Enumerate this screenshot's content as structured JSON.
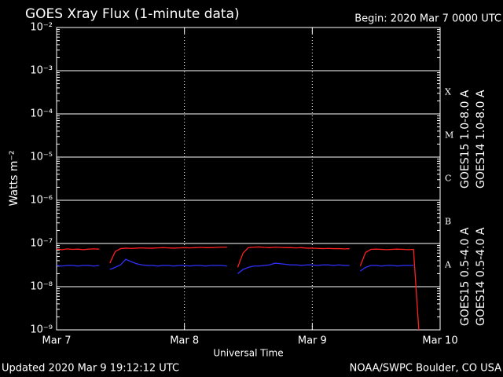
{
  "chart_data": {
    "type": "line",
    "title": "GOES Xray Flux (1-minute data)",
    "subtitle": "Begin:  2020 Mar 7 0000 UTC",
    "x_label": "Universal Time",
    "y_label": "Watts m⁻²",
    "footer_left": "Updated 2020 Mar  9 19:12:12 UTC",
    "footer_right": "NOAA/SWPC Boulder, CO USA",
    "flare_classes": [
      "A",
      "B",
      "C",
      "M",
      "X"
    ],
    "log_scale": true,
    "grid": true,
    "ylim": [
      1e-09,
      0.01
    ],
    "yticks": [
      {
        "value": 1e-09,
        "label": "10⁻⁹"
      },
      {
        "value": 1e-08,
        "label": "10⁻⁸"
      },
      {
        "value": 1e-07,
        "label": "10⁻⁷"
      },
      {
        "value": 1e-06,
        "label": "10⁻⁶"
      },
      {
        "value": 1e-05,
        "label": "10⁻⁵"
      },
      {
        "value": 0.0001,
        "label": "10⁻⁴"
      },
      {
        "value": 0.001,
        "label": "10⁻³"
      },
      {
        "value": 0.01,
        "label": "10⁻²"
      }
    ],
    "xlim": [
      "2020-03-07 00:00",
      "2020-03-10 00:00"
    ],
    "xticks": [
      {
        "value": "2020-03-07 00:00",
        "label": "Mar 7"
      },
      {
        "value": "2020-03-08 00:00",
        "label": "Mar 8"
      },
      {
        "value": "2020-03-09 00:00",
        "label": "Mar 9"
      },
      {
        "value": "2020-03-10 00:00",
        "label": "Mar 10"
      }
    ],
    "x": [
      "2020-03-07 00:00",
      "2020-03-07 01:00",
      "2020-03-07 02:00",
      "2020-03-07 03:00",
      "2020-03-07 04:00",
      "2020-03-07 05:00",
      "2020-03-07 06:00",
      "2020-03-07 07:00",
      "2020-03-07 08:00",
      "2020-03-07 09:00",
      "2020-03-07 10:00",
      "2020-03-07 11:00",
      "2020-03-07 12:00",
      "2020-03-07 13:00",
      "2020-03-07 14:00",
      "2020-03-07 15:00",
      "2020-03-07 16:00",
      "2020-03-07 17:00",
      "2020-03-07 18:00",
      "2020-03-07 19:00",
      "2020-03-07 20:00",
      "2020-03-07 21:00",
      "2020-03-07 22:00",
      "2020-03-07 23:00",
      "2020-03-08 00:00",
      "2020-03-08 01:00",
      "2020-03-08 02:00",
      "2020-03-08 03:00",
      "2020-03-08 04:00",
      "2020-03-08 05:00",
      "2020-03-08 06:00",
      "2020-03-08 07:00",
      "2020-03-08 08:00",
      "2020-03-08 09:00",
      "2020-03-08 10:00",
      "2020-03-08 11:00",
      "2020-03-08 12:00",
      "2020-03-08 13:00",
      "2020-03-08 14:00",
      "2020-03-08 15:00",
      "2020-03-08 16:00",
      "2020-03-08 17:00",
      "2020-03-08 18:00",
      "2020-03-08 19:00",
      "2020-03-08 20:00",
      "2020-03-08 21:00",
      "2020-03-08 22:00",
      "2020-03-08 23:00",
      "2020-03-09 00:00",
      "2020-03-09 01:00",
      "2020-03-09 02:00",
      "2020-03-09 03:00",
      "2020-03-09 04:00",
      "2020-03-09 05:00",
      "2020-03-09 06:00",
      "2020-03-09 07:00",
      "2020-03-09 08:00",
      "2020-03-09 09:00",
      "2020-03-09 10:00",
      "2020-03-09 11:00",
      "2020-03-09 12:00",
      "2020-03-09 13:00",
      "2020-03-09 14:00",
      "2020-03-09 15:00",
      "2020-03-09 16:00",
      "2020-03-09 17:00",
      "2020-03-09 18:00",
      "2020-03-09 19:00",
      "2020-03-09 20:00"
    ],
    "series": [
      {
        "name": "GOES15 1.0-8.0 A",
        "color": "#ff2020",
        "values": [
          7.4e-08,
          7.2e-08,
          7.5e-08,
          7.3e-08,
          7.4e-08,
          7.2e-08,
          7.4e-08,
          7.5e-08,
          7.4e-08,
          null,
          3.5e-08,
          6.5e-08,
          7.6e-08,
          7.8e-08,
          7.7e-08,
          7.8e-08,
          7.9e-08,
          7.8e-08,
          7.8e-08,
          7.9e-08,
          8e-08,
          7.9e-08,
          7.8e-08,
          7.9e-08,
          8e-08,
          7.9e-08,
          8e-08,
          8.1e-08,
          8e-08,
          8e-08,
          8.1e-08,
          8.2e-08,
          8.2e-08,
          null,
          2.8e-08,
          6e-08,
          8e-08,
          8.2e-08,
          8.3e-08,
          8.1e-08,
          8e-08,
          8.2e-08,
          8.1e-08,
          8e-08,
          8e-08,
          7.9e-08,
          8e-08,
          7.8e-08,
          7.8e-08,
          7.7e-08,
          7.6e-08,
          7.7e-08,
          7.6e-08,
          7.6e-08,
          7.5e-08,
          7.6e-08,
          null,
          3e-08,
          6.2e-08,
          7.3e-08,
          7.4e-08,
          7.3e-08,
          7.2e-08,
          7.3e-08,
          7.4e-08,
          7.3e-08,
          7.2e-08,
          7.3e-08,
          1e-09
        ]
      },
      {
        "name": "GOES14 1.0-8.0 A",
        "color": "#ffa020",
        "values": [
          null,
          null,
          null,
          null,
          null,
          null,
          null,
          null,
          null,
          null,
          null,
          null,
          null,
          null,
          null,
          null,
          null,
          null,
          null,
          null,
          null,
          null,
          null,
          null,
          null,
          null,
          null,
          null,
          null,
          null,
          null,
          null,
          null,
          null,
          null,
          null,
          null,
          null,
          null,
          null,
          null,
          null,
          null,
          null,
          null,
          null,
          null,
          null,
          null,
          null,
          null,
          null,
          null,
          null,
          null,
          null,
          null,
          null,
          null,
          null,
          null,
          null,
          null,
          null,
          null,
          null,
          null,
          null,
          null
        ]
      },
      {
        "name": "GOES15 0.5-4.0 A",
        "color": "#3030ff",
        "values": [
          3.1e-08,
          3e-08,
          3.1e-08,
          3.1e-08,
          3e-08,
          3.1e-08,
          3.1e-08,
          3e-08,
          3.1e-08,
          null,
          2.5e-08,
          2.8e-08,
          3.2e-08,
          4.3e-08,
          3.8e-08,
          3.4e-08,
          3.2e-08,
          3.1e-08,
          3.1e-08,
          3e-08,
          3.1e-08,
          3.1e-08,
          3e-08,
          3.1e-08,
          3.1e-08,
          3e-08,
          3.1e-08,
          3.1e-08,
          3e-08,
          3.1e-08,
          3.1e-08,
          3.1e-08,
          3e-08,
          null,
          2e-08,
          2.5e-08,
          2.8e-08,
          3e-08,
          3e-08,
          3.1e-08,
          3.2e-08,
          3.5e-08,
          3.4e-08,
          3.3e-08,
          3.2e-08,
          3.2e-08,
          3.1e-08,
          3.2e-08,
          3.2e-08,
          3.1e-08,
          3.2e-08,
          3.2e-08,
          3.1e-08,
          3.2e-08,
          3.1e-08,
          3.1e-08,
          null,
          2.3e-08,
          2.8e-08,
          3.1e-08,
          3.1e-08,
          3e-08,
          3.1e-08,
          3.1e-08,
          3e-08,
          3.1e-08,
          3.1e-08,
          3.1e-08,
          null
        ]
      },
      {
        "name": "GOES14 0.5-4.0 A",
        "color": "#6020c0",
        "values": [
          null,
          null,
          null,
          null,
          null,
          null,
          null,
          null,
          null,
          null,
          null,
          null,
          null,
          null,
          null,
          null,
          null,
          null,
          null,
          null,
          null,
          null,
          null,
          null,
          null,
          null,
          null,
          null,
          null,
          null,
          null,
          null,
          null,
          null,
          null,
          null,
          null,
          null,
          null,
          null,
          null,
          null,
          null,
          null,
          null,
          null,
          null,
          null,
          null,
          null,
          null,
          null,
          null,
          null,
          null,
          null,
          null,
          null,
          null,
          null,
          null,
          null,
          null,
          null,
          null,
          null,
          null,
          null,
          null
        ]
      }
    ]
  }
}
